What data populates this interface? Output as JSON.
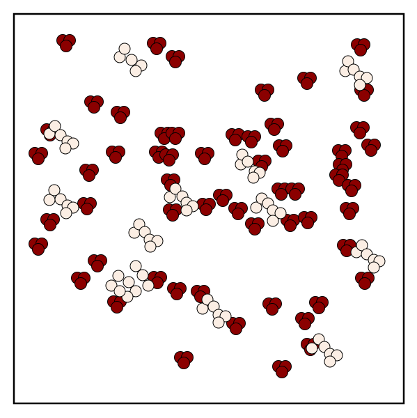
{
  "scene": {
    "colors": {
      "background": "#ffffff",
      "frame": "#000000",
      "dark_particle": "#8b0000",
      "light_particle": "#fbeee4",
      "outline": "#000000"
    },
    "dark_cluster_count": 55,
    "light_cluster_count": 12
  }
}
